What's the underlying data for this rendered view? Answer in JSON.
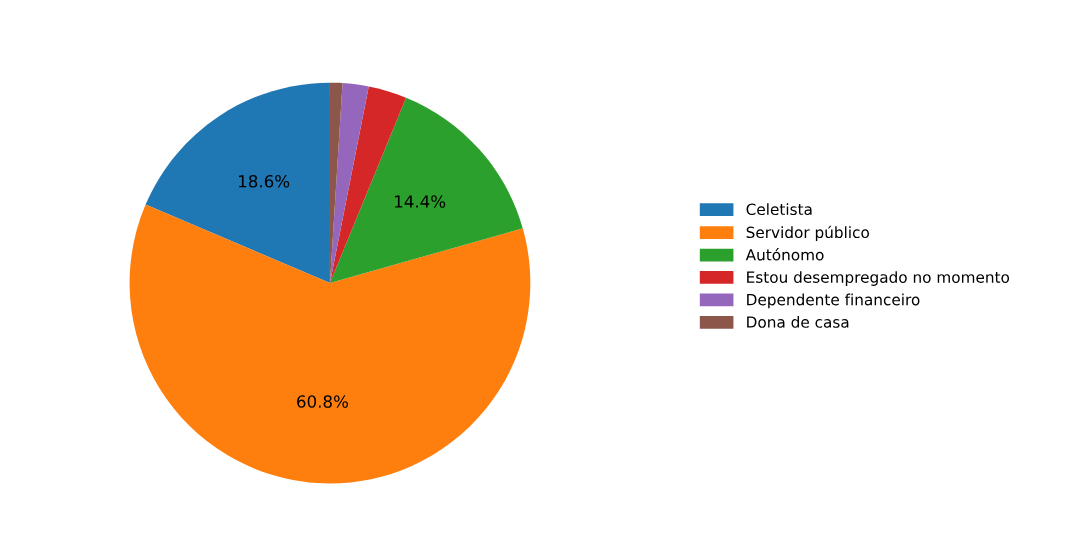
{
  "chart_data": {
    "type": "pie",
    "categories": [
      "Celetista",
      "Servidor público",
      "Autónomo",
      "Estou desempregado no momento",
      "Dependente financeiro",
      "Dona de casa"
    ],
    "values": [
      18.6,
      60.8,
      14.4,
      3.1,
      2.1,
      1.0
    ],
    "colors": [
      "#1f77b4",
      "#ff7f0e",
      "#2ca02c",
      "#d62728",
      "#9467bd",
      "#8c564b"
    ],
    "value_labels": [
      "18.6%",
      "60.8%",
      "14.4%",
      null,
      null,
      null
    ],
    "legend": "right"
  }
}
